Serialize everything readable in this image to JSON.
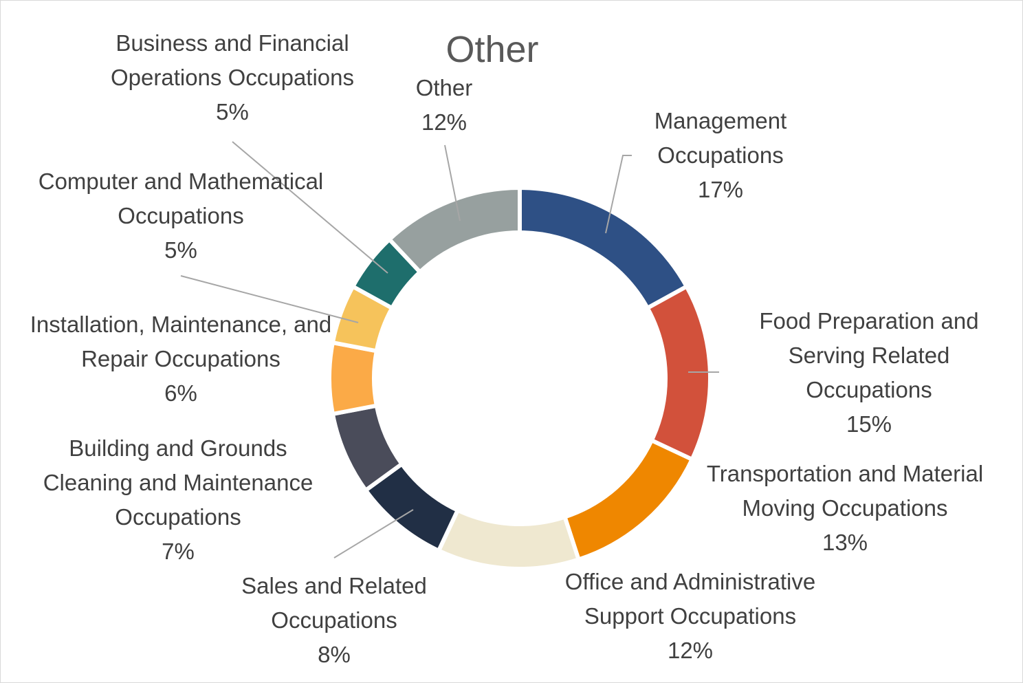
{
  "chart_data": {
    "type": "donut",
    "title": "Other",
    "categories": [
      "Management Occupations",
      "Food Preparation and Serving Related Occupations",
      "Transportation and Material Moving Occupations",
      "Office and Administrative Support Occupations",
      "Sales and Related Occupations",
      "Building and Grounds Cleaning and Maintenance Occupations",
      "Installation, Maintenance, and Repair Occupations",
      "Computer and Mathematical Occupations",
      "Business and Financial Operations Occupations",
      "Other"
    ],
    "values": [
      17,
      15,
      13,
      12,
      8,
      7,
      6,
      5,
      5,
      12
    ],
    "value_labels": [
      "17%",
      "15%",
      "13%",
      "12%",
      "8%",
      "7%",
      "6%",
      "5%",
      "5%",
      "12%"
    ],
    "colors": [
      "#2e5085",
      "#d2513b",
      "#ef8700",
      "#efe8d0",
      "#212f45",
      "#4a4c5a",
      "#fbaa47",
      "#f6c35b",
      "#1e6e6c",
      "#97a09f"
    ]
  }
}
